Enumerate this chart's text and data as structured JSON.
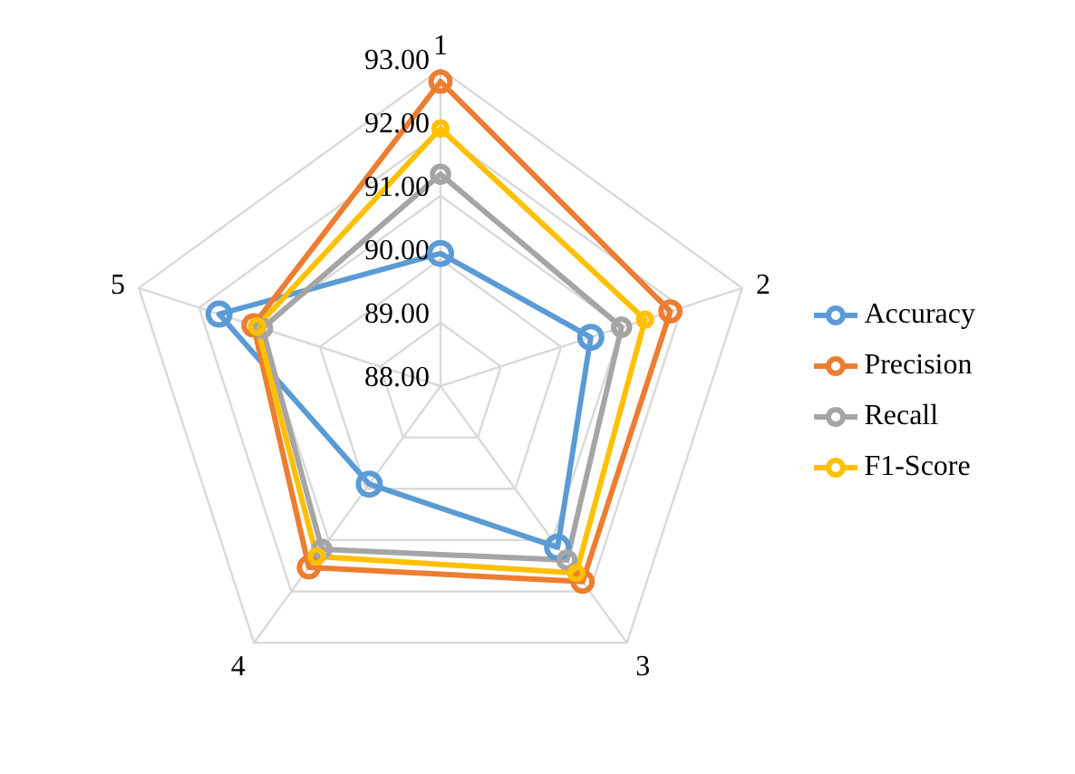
{
  "chart_data": {
    "type": "radar",
    "categories": [
      "1",
      "2",
      "3",
      "4",
      "5"
    ],
    "series": [
      {
        "name": "Accuracy",
        "color": "#5b9bd5",
        "values": [
          90.09,
          90.49,
          91.14,
          89.91,
          91.67
        ]
      },
      {
        "name": "Precision",
        "color": "#ed7d31",
        "values": [
          92.8,
          91.81,
          91.81,
          91.53,
          91.1
        ]
      },
      {
        "name": "Recall",
        "color": "#a5a5a5",
        "values": [
          91.34,
          91.0,
          91.39,
          91.18,
          90.95
        ]
      },
      {
        "name": "F1-Score",
        "color": "#ffc000",
        "values": [
          92.06,
          91.39,
          91.64,
          91.32,
          91.04
        ]
      }
    ],
    "ylim": [
      88,
      93
    ],
    "yticks": [
      {
        "value": 88,
        "label": "88.00"
      },
      {
        "value": 89,
        "label": "89.00"
      },
      {
        "value": 90,
        "label": "90.00"
      },
      {
        "value": 91,
        "label": "91.00"
      },
      {
        "value": 92,
        "label": "92.00"
      },
      {
        "value": 93,
        "label": "93.00"
      }
    ],
    "grid": true,
    "legend": "right",
    "marker": "circle"
  }
}
